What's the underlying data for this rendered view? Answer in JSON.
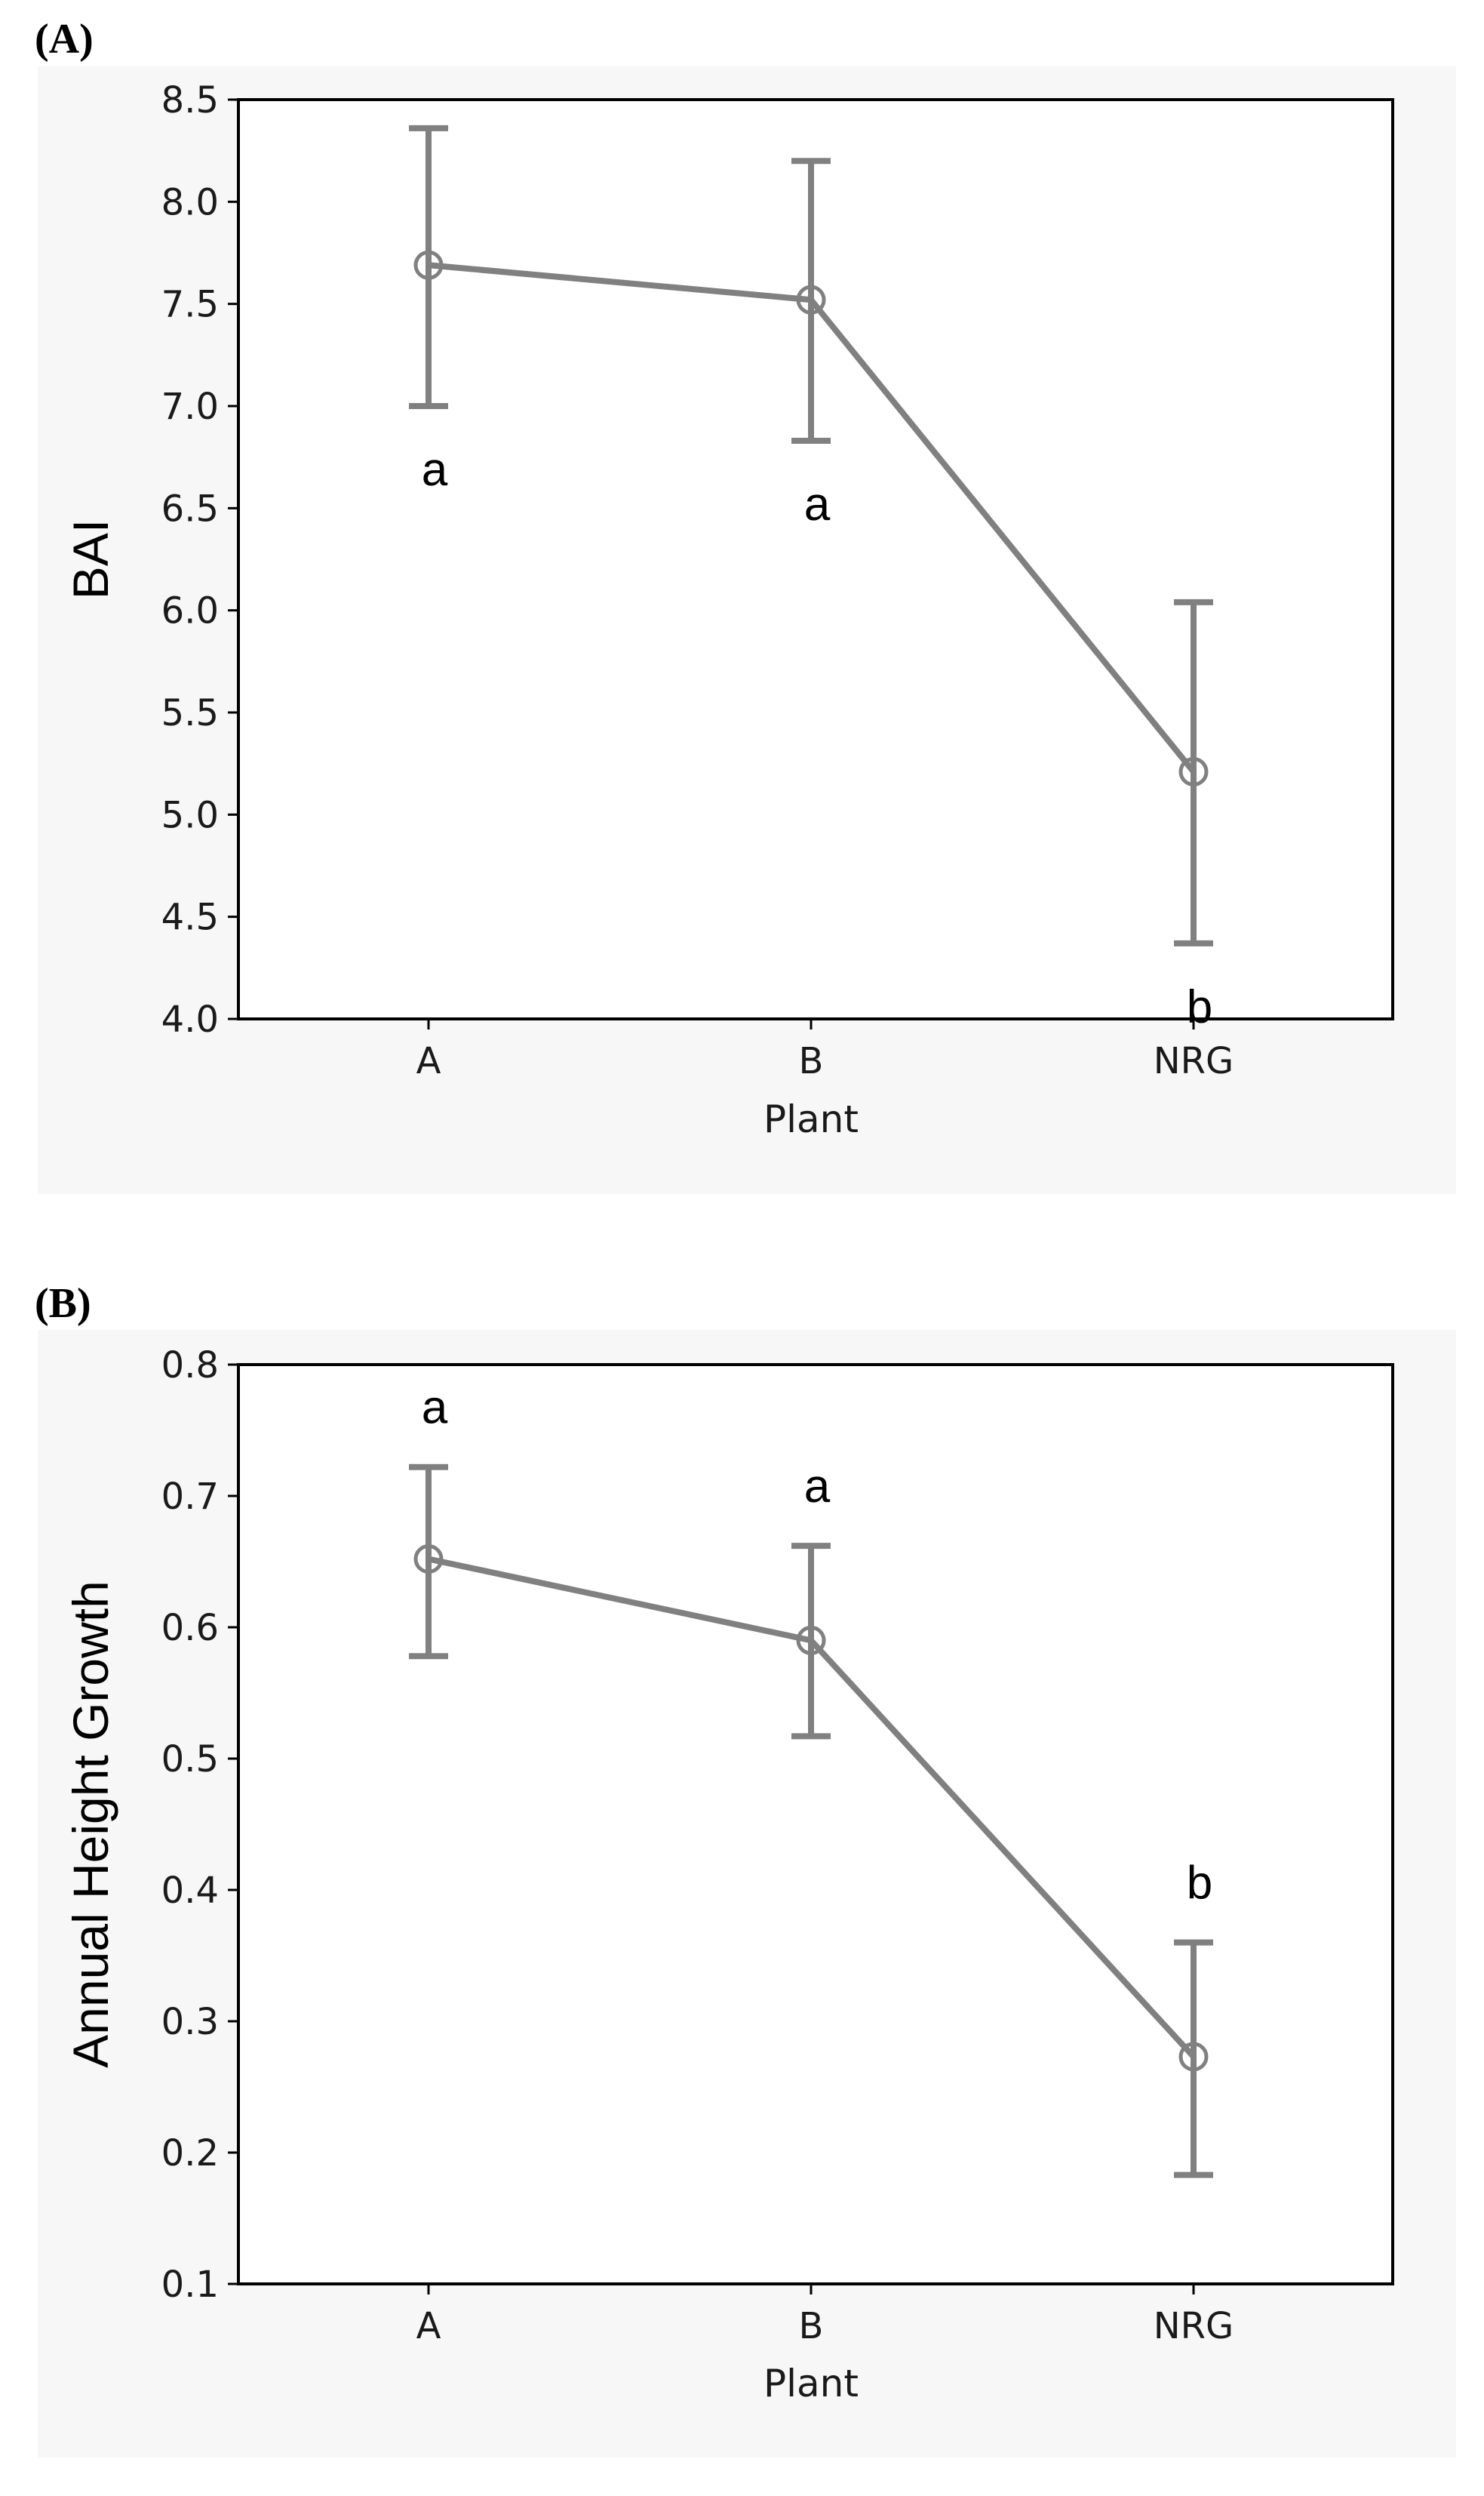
{
  "chart_data": [
    {
      "panel_label": "(A)",
      "type": "line",
      "categories": [
        "A",
        "B",
        "NRG"
      ],
      "series": [
        {
          "name": "BAI",
          "values": [
            7.69,
            7.52,
            5.21
          ],
          "error_lower": [
            7.0,
            6.83,
            4.37
          ],
          "error_upper": [
            8.36,
            8.2,
            6.04
          ]
        }
      ],
      "significance_letters": [
        "a",
        "a",
        "b"
      ],
      "xlabel": "Plant",
      "ylabel": "BAI",
      "ylim": [
        4.0,
        8.5
      ],
      "yticks": [
        "4.0",
        "4.5",
        "5.0",
        "5.5",
        "6.0",
        "6.5",
        "7.0",
        "7.5",
        "8.0",
        "8.5"
      ],
      "grid": false,
      "color": "#808080"
    },
    {
      "panel_label": "(B)",
      "type": "line",
      "categories": [
        "A",
        "B",
        "NRG"
      ],
      "series": [
        {
          "name": "Annual Height Growth",
          "values": [
            0.652,
            0.59,
            0.273
          ],
          "error_lower": [
            0.578,
            0.517,
            0.183
          ],
          "error_upper": [
            0.722,
            0.662,
            0.36
          ]
        }
      ],
      "significance_letters": [
        "a",
        "a",
        "b"
      ],
      "xlabel": "Plant",
      "ylabel": "Annual Height Growth",
      "ylim": [
        0.1,
        0.8
      ],
      "yticks": [
        "0.1",
        "0.2",
        "0.3",
        "0.4",
        "0.5",
        "0.6",
        "0.7",
        "0.8"
      ],
      "grid": false,
      "color": "#808080"
    }
  ]
}
